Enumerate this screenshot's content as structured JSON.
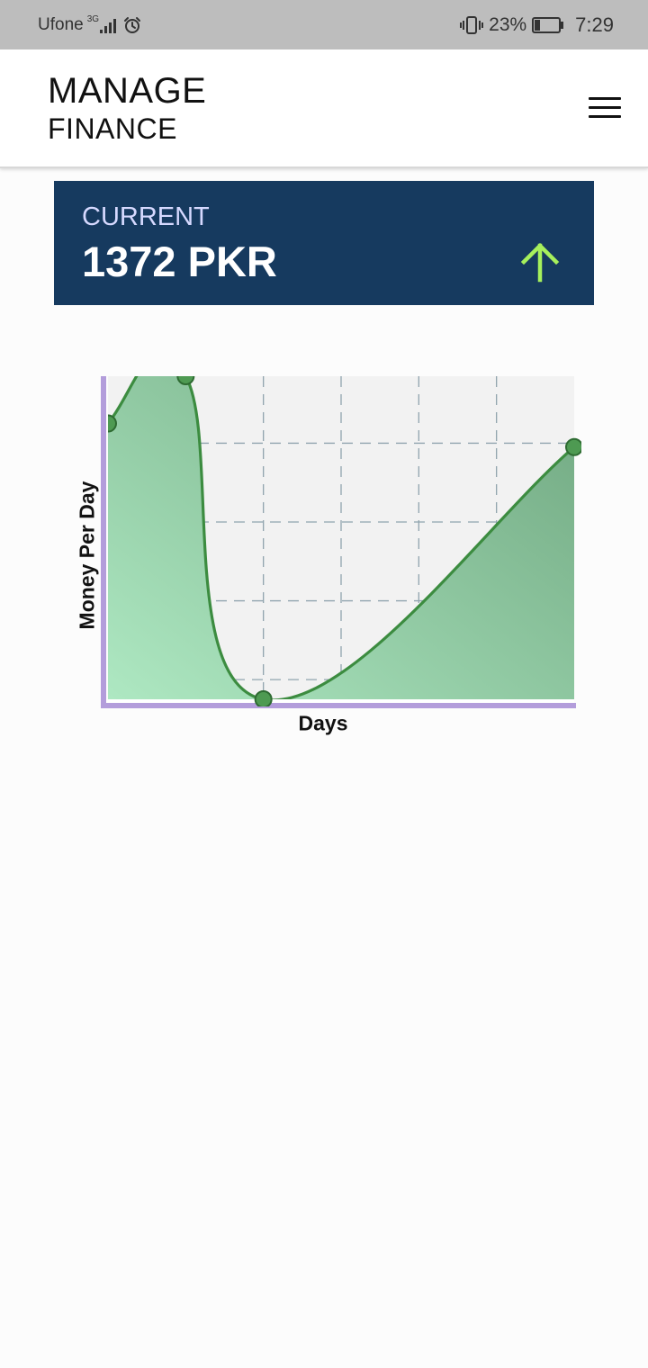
{
  "status_bar": {
    "carrier": "Ufone",
    "network": "3G",
    "battery_percent": "23%",
    "battery_level": 0.23,
    "time": "7:29",
    "icons": [
      "signal-icon",
      "alarm-icon",
      "vibrate-icon",
      "battery-icon"
    ]
  },
  "header": {
    "title_line1": "MANAGE",
    "title_line2": "FINANCE",
    "menu_icon": "hamburger-menu-icon"
  },
  "balance": {
    "label": "CURRENT",
    "value": "1372 PKR",
    "trend_icon": "arrow-up-icon",
    "trend_color": "#a6f05c",
    "card_color": "#163a5f"
  },
  "chart_data": {
    "type": "area",
    "xlabel": "Days",
    "ylabel": "Money Per Day",
    "x": [
      0,
      1,
      2,
      6
    ],
    "y": [
      3.5,
      4.1,
      0,
      3.2
    ],
    "xlim": [
      0,
      6
    ],
    "ylim": [
      0,
      4.1
    ],
    "x_grid_lines": [
      1,
      2,
      3,
      4,
      5
    ],
    "y_grid_lines": [
      0.25,
      1.25,
      2.25,
      3.25
    ],
    "grid": true,
    "line_color": "#3c8c40",
    "fill_colors": [
      "#aee8c2",
      "#6ea57e"
    ],
    "axis_color": "#b39ddb",
    "plot_background": "#f2f2f2"
  }
}
